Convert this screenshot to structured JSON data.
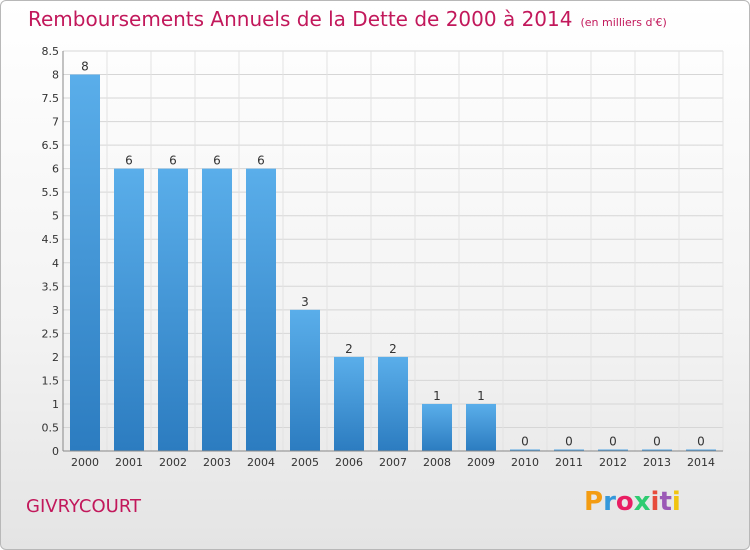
{
  "header": {
    "title": "Remboursements Annuels de la Dette de 2000 à 2014",
    "subtitle": "(en milliers d'€)"
  },
  "commune": "GIVRYCOURT",
  "logo": {
    "letters": [
      "P",
      "r",
      "o",
      "x",
      "i",
      "t",
      "i"
    ],
    "colors": [
      "#f39c12",
      "#3498db",
      "#e91e63",
      "#2ecc71",
      "#e74c3c",
      "#9b59b6",
      "#f1c40f"
    ]
  },
  "chart_data": {
    "type": "bar",
    "categories": [
      "2000",
      "2001",
      "2002",
      "2003",
      "2004",
      "2005",
      "2006",
      "2007",
      "2008",
      "2009",
      "2010",
      "2011",
      "2012",
      "2013",
      "2014"
    ],
    "values": [
      8,
      6,
      6,
      6,
      6,
      3,
      2,
      2,
      1,
      1,
      0,
      0,
      0,
      0,
      0
    ],
    "yticks": [
      "0",
      "0.5",
      "1",
      "1.5",
      "2",
      "2.5",
      "3",
      "3.5",
      "4",
      "4.5",
      "5",
      "5.5",
      "6",
      "6.5",
      "7",
      "7.5",
      "8",
      "8.5"
    ],
    "ylim": [
      0,
      8.5
    ],
    "grid": true,
    "bar_color": "#3a92d8"
  }
}
